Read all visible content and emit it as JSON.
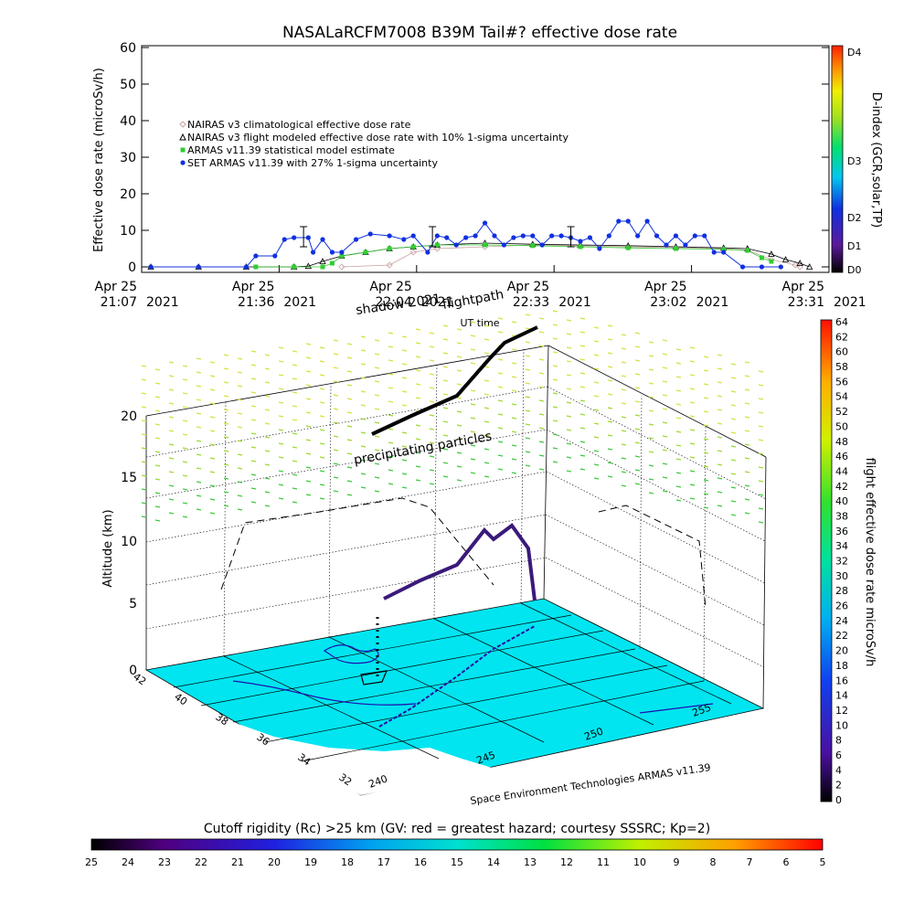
{
  "colors": {
    "nairas_climatological": "#c8a0a0",
    "nairas_flight": "#000000",
    "armas_statistical": "#33cc33",
    "set_armas": "#1030e0",
    "ground": "#00e5f0",
    "flightpath_shadow": "#000000"
  },
  "chart_data": [
    {
      "type": "line",
      "title": "NASALaRCFM7008  B39M Tail#? effective dose rate",
      "xlabel": "UT time",
      "ylabel": "Effective dose rate (microSv/h)",
      "ylim": [
        0,
        60
      ],
      "y_ticks": [
        "0",
        "10",
        "20",
        "30",
        "40",
        "50",
        "60"
      ],
      "x_ticks": [
        {
          "date": "Apr 25",
          "time": "21:07",
          "year": "2021"
        },
        {
          "date": "Apr 25",
          "time": "21:36",
          "year": "2021"
        },
        {
          "date": "Apr 25",
          "time": "22:04",
          "year": "2021"
        },
        {
          "date": "Apr 25",
          "time": "22:33",
          "year": "2021"
        },
        {
          "date": "Apr 25",
          "time": "23:02",
          "year": "2021"
        },
        {
          "date": "Apr 25",
          "time": "23:31",
          "year": "2021"
        }
      ],
      "xlim": [
        0,
        144
      ],
      "legend_placement": "top-left",
      "series": [
        {
          "name": "NAIRAS v3 climatological effective dose rate",
          "marker": "diamond",
          "x": [
            40,
            50,
            55,
            60,
            70,
            80,
            90,
            100,
            110,
            120,
            125,
            130,
            135,
            136
          ],
          "y": [
            0,
            0.5,
            4,
            5,
            5.5,
            6,
            5.8,
            5.5,
            5.3,
            5.0,
            4.6,
            2,
            0.5,
            0
          ]
        },
        {
          "name": "NAIRAS v3 flight modeled effective dose rate with 10% 1-sigma uncertainty",
          "marker": "triangle",
          "x": [
            0,
            10,
            20,
            30,
            33,
            36,
            40,
            45,
            50,
            55,
            60,
            70,
            80,
            90,
            100,
            110,
            120,
            125,
            130,
            133,
            136,
            138
          ],
          "y": [
            0,
            0,
            0,
            0,
            0.2,
            1.5,
            3,
            4,
            5,
            5.5,
            6,
            6.5,
            6.2,
            6,
            5.8,
            5.5,
            5.2,
            5.0,
            3.5,
            2,
            1,
            0
          ]
        },
        {
          "name": "ARMAS v11.39 statistical model estimate",
          "marker": "square",
          "x": [
            22,
            30,
            36,
            38,
            40,
            45,
            50,
            55,
            60,
            70,
            80,
            90,
            100,
            110,
            120,
            125,
            128,
            130
          ],
          "y": [
            0,
            0,
            0,
            1,
            3,
            4,
            5,
            5.5,
            6,
            6,
            5.8,
            5.5,
            5.2,
            5.0,
            4.8,
            4.5,
            2.5,
            1.5
          ]
        },
        {
          "name": "SET ARMAS v11.39 with 27% 1-sigma uncertainty",
          "marker": "circle",
          "x": [
            0,
            10,
            20,
            22,
            26,
            28,
            30,
            33,
            34,
            36,
            38,
            40,
            43,
            46,
            50,
            53,
            55,
            58,
            60,
            62,
            64,
            66,
            68,
            70,
            72,
            74,
            76,
            78,
            80,
            82,
            84,
            86,
            88,
            90,
            92,
            94,
            96,
            98,
            100,
            102,
            104,
            106,
            108,
            110,
            112,
            114,
            116,
            118,
            120,
            124,
            128,
            132
          ],
          "y": [
            0,
            0,
            0,
            3,
            3,
            7.5,
            8,
            8,
            4,
            7.5,
            4,
            4,
            7.5,
            9,
            8.5,
            7.5,
            8.5,
            4,
            8.5,
            8,
            6,
            8,
            8.5,
            12,
            8.5,
            6,
            8,
            8.5,
            8.5,
            6,
            8.5,
            8.5,
            8,
            7,
            8,
            5,
            8.5,
            12.5,
            12.5,
            8.5,
            12.5,
            8.5,
            6,
            8.5,
            6,
            8.5,
            8.5,
            4,
            4,
            0,
            0,
            0
          ],
          "error_bars_at_x": [
            32,
            59,
            88
          ]
        }
      ],
      "right_axis": {
        "label": "D-index (GCR,solar,TP)",
        "ticks": [
          "D0",
          "D1",
          "D2",
          "D3",
          "D4"
        ]
      }
    },
    {
      "type": "scatter",
      "view": "3d",
      "zlabel": "Altitude (km)",
      "z_ticks": [
        "0",
        "5",
        "10",
        "15",
        "20"
      ],
      "lat_ticks": [
        "42",
        "40",
        "38",
        "36",
        "34",
        "32"
      ],
      "lon_ticks": [
        "240",
        "245",
        "250",
        "255"
      ],
      "annotations": [
        "shadow 2021",
        "flightpath",
        "precipitating particles",
        "Space Environment Technologies ARMAS v11.39"
      ],
      "colorbar": {
        "label": "flight effective dose rate microSv/h",
        "min": 0,
        "max": 64,
        "ticks": [
          "0",
          "2",
          "4",
          "6",
          "8",
          "10",
          "12",
          "14",
          "16",
          "18",
          "20",
          "22",
          "24",
          "26",
          "28",
          "30",
          "32",
          "34",
          "36",
          "38",
          "40",
          "42",
          "44",
          "46",
          "48",
          "50",
          "52",
          "54",
          "56",
          "58",
          "60",
          "62",
          "64"
        ]
      }
    }
  ],
  "bottom_bar": {
    "label": "Cutoff rigidity (Rc) >25 km (GV: red = greatest hazard; courtesy SSSRC; Kp=2)",
    "ticks": [
      "25",
      "24",
      "23",
      "22",
      "21",
      "20",
      "19",
      "18",
      "17",
      "16",
      "15",
      "14",
      "13",
      "12",
      "11",
      "10",
      "9",
      "8",
      "7",
      "6",
      "5"
    ]
  }
}
